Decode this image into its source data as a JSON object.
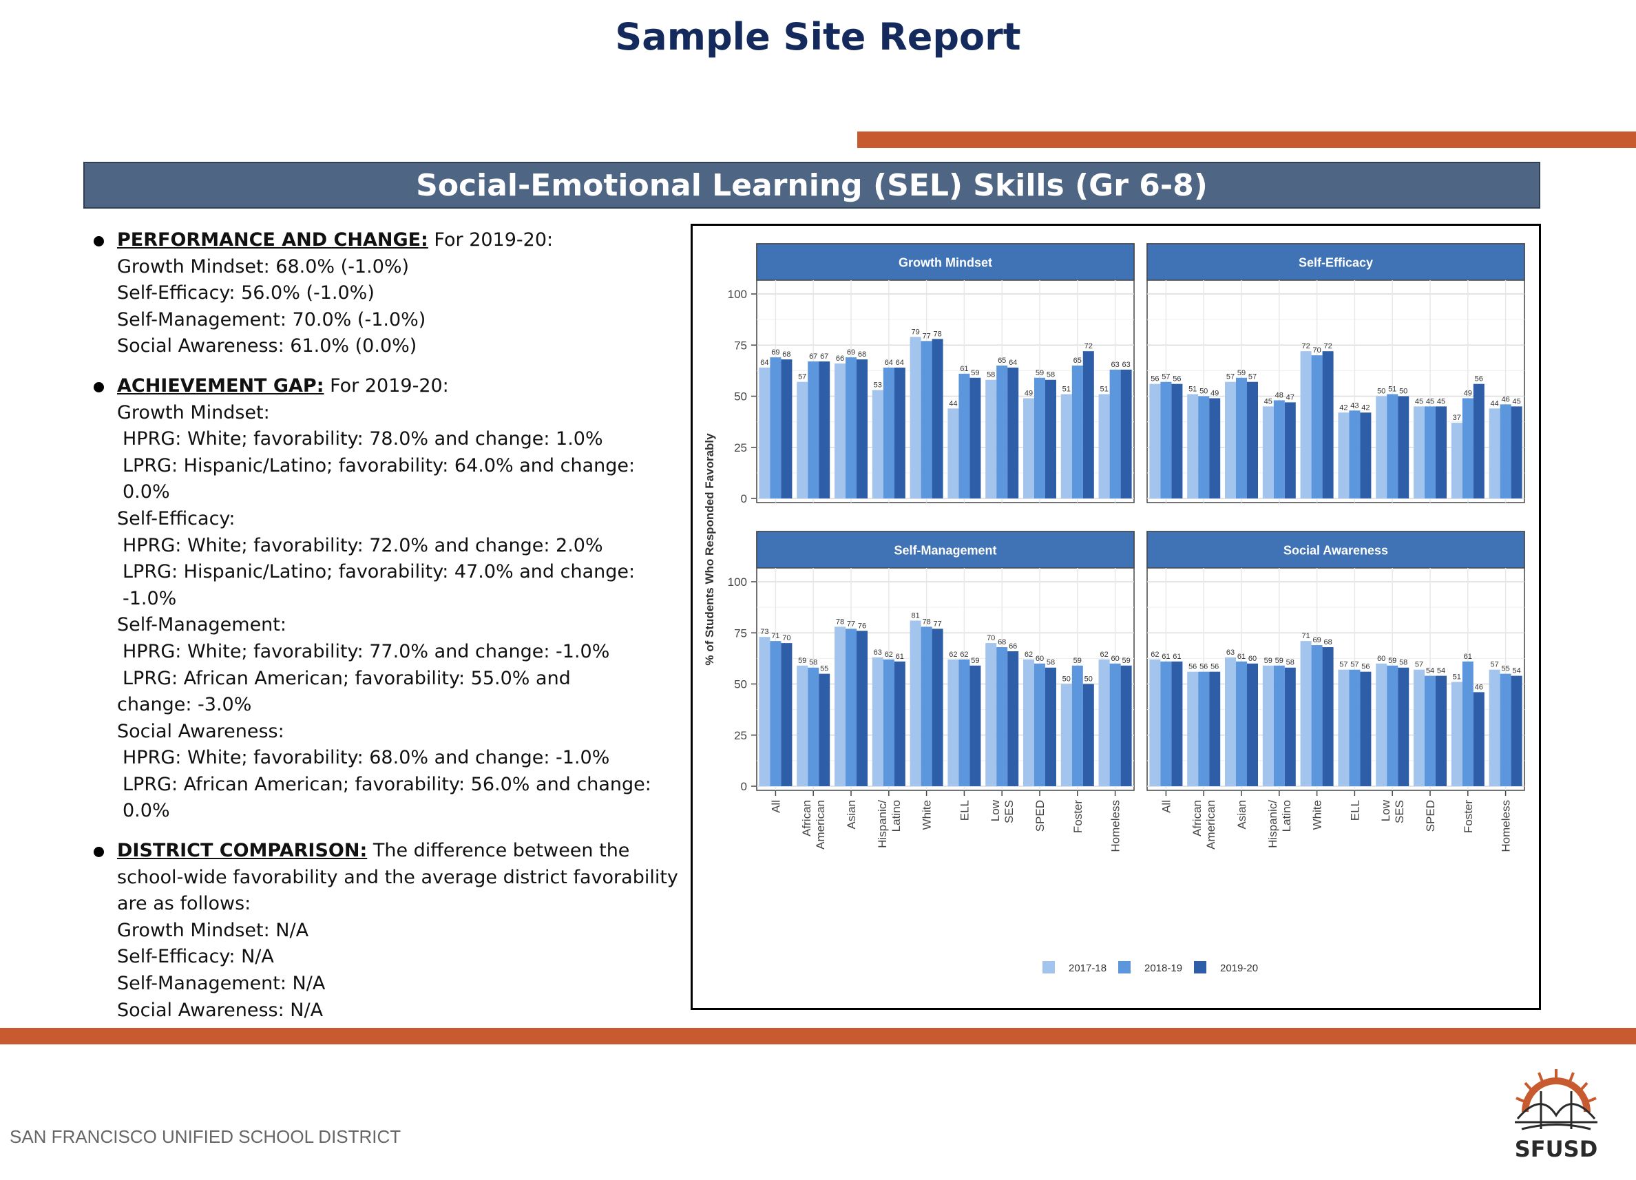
{
  "page_title": "Sample Site Report",
  "section_title": "Social-Emotional Learning (SEL) Skills (Gr 6-8)",
  "text_blocks": [
    {
      "heading": "PERFORMANCE AND CHANGE:",
      "lead": " For 2019-20:",
      "lines": [
        {
          "text": "Growth Mindset: 68.0% (-1.0%)",
          "indent": false
        },
        {
          "text": "Self-Efficacy: 56.0% (-1.0%)",
          "indent": false
        },
        {
          "text": "Self-Management: 70.0% (-1.0%)",
          "indent": false
        },
        {
          "text": "Social Awareness: 61.0% (0.0%)",
          "indent": false
        }
      ]
    },
    {
      "heading": "ACHIEVEMENT GAP:",
      "lead": " For 2019-20:",
      "lines": [
        {
          "text": "Growth Mindset:",
          "indent": false
        },
        {
          "text": "HPRG: White; favorability: 78.0% and change: 1.0%",
          "indent": true
        },
        {
          "text": "LPRG: Hispanic/Latino; favorability: 64.0% and change: 0.0%",
          "indent": true
        },
        {
          "text": "Self-Efficacy:",
          "indent": false
        },
        {
          "text": "HPRG: White; favorability: 72.0% and change: 2.0%",
          "indent": true
        },
        {
          "text": "LPRG: Hispanic/Latino; favorability: 47.0% and change: -1.0%",
          "indent": true
        },
        {
          "text": "Self-Management:",
          "indent": false
        },
        {
          "text": "HPRG: White; favorability: 77.0% and change: -1.0%",
          "indent": true
        },
        {
          "text": "LPRG: African American; favorability: 55.0% and",
          "indent": true
        },
        {
          "text": "change: -3.0%",
          "indent": false
        },
        {
          "text": "Social Awareness:",
          "indent": false
        },
        {
          "text": "HPRG: White; favorability: 68.0% and change: -1.0%",
          "indent": true
        },
        {
          "text": "LPRG: African American; favorability: 56.0% and change: 0.0%",
          "indent": true
        }
      ]
    },
    {
      "heading": "DISTRICT COMPARISON:",
      "lead": " The difference between the school-wide favorability and the average district favorability are as follows:",
      "lines": [
        {
          "text": "Growth Mindset: N/A",
          "indent": false
        },
        {
          "text": "Self-Efficacy: N/A",
          "indent": false
        },
        {
          "text": "Self-Management: N/A",
          "indent": false
        },
        {
          "text": "Social Awareness: N/A",
          "indent": false
        }
      ]
    }
  ],
  "chart_data": {
    "type": "bar",
    "ylabel": "% of Students Who Responded Favorably",
    "ylim": [
      0,
      100
    ],
    "yticks": [
      0,
      25,
      50,
      75,
      100
    ],
    "grid": true,
    "legend_position": "bottom",
    "categories": [
      "All",
      "African American",
      "Asian",
      "Hispanic/ Latino",
      "White",
      "ELL",
      "Low SES",
      "SPED",
      "Foster",
      "Homeless"
    ],
    "series_names": [
      "2017-18",
      "2018-19",
      "2019-20"
    ],
    "series_colors": [
      "#a3c4ec",
      "#5c96dc",
      "#2f5ea8"
    ],
    "panels": [
      {
        "title": "Growth Mindset",
        "values": [
          [
            64,
            69,
            68
          ],
          [
            57,
            67,
            67
          ],
          [
            66,
            69,
            68
          ],
          [
            53,
            64,
            64
          ],
          [
            79,
            77,
            78
          ],
          [
            44,
            61,
            59
          ],
          [
            58,
            65,
            64
          ],
          [
            49,
            59,
            58
          ],
          [
            51,
            65,
            72
          ],
          [
            51,
            63,
            63
          ]
        ]
      },
      {
        "title": "Self-Efficacy",
        "values": [
          [
            56,
            57,
            56
          ],
          [
            51,
            50,
            49
          ],
          [
            57,
            59,
            57
          ],
          [
            45,
            48,
            47
          ],
          [
            72,
            70,
            72
          ],
          [
            42,
            43,
            42
          ],
          [
            50,
            51,
            50
          ],
          [
            45,
            45,
            45
          ],
          [
            37,
            49,
            56
          ],
          [
            44,
            46,
            45
          ]
        ]
      },
      {
        "title": "Self-Management",
        "values": [
          [
            73,
            71,
            70
          ],
          [
            59,
            58,
            55
          ],
          [
            78,
            77,
            76
          ],
          [
            63,
            62,
            61
          ],
          [
            81,
            78,
            77
          ],
          [
            62,
            62,
            59
          ],
          [
            70,
            68,
            66
          ],
          [
            62,
            60,
            58
          ],
          [
            50,
            59,
            50
          ],
          [
            62,
            60,
            59
          ]
        ]
      },
      {
        "title": "Social Awareness",
        "values": [
          [
            62,
            61,
            61
          ],
          [
            56,
            56,
            56
          ],
          [
            63,
            61,
            60
          ],
          [
            59,
            59,
            58
          ],
          [
            71,
            69,
            68
          ],
          [
            57,
            57,
            56
          ],
          [
            60,
            59,
            58
          ],
          [
            57,
            54,
            54
          ],
          [
            51,
            61,
            46
          ],
          [
            57,
            55,
            54
          ]
        ]
      }
    ]
  },
  "footer": {
    "district_name": "SAN FRANCISCO UNIFIED SCHOOL DISTRICT",
    "logo_text": "SFUSD"
  },
  "colors": {
    "title_navy": "#142a5c",
    "stripe_orange": "#c85a30",
    "banner_blue": "#4e6584",
    "panel_header": "#3f73b5"
  }
}
